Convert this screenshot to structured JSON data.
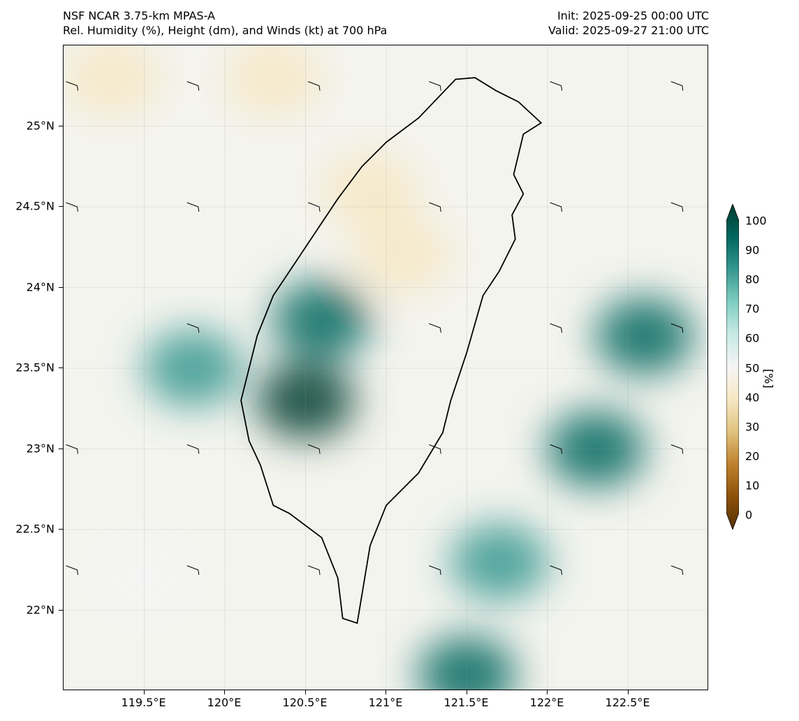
{
  "header": {
    "model": "NSF NCAR 3.75-km MPAS-A",
    "field": "Rel. Humidity (%), Height (dm), and Winds (kt) at 700 hPa",
    "init": "Init: 2025-09-25 00:00 UTC",
    "valid": "Valid: 2025-09-27 21:00 UTC"
  },
  "axes": {
    "lon_labels": [
      "119.5°E",
      "120°E",
      "120.5°E",
      "121°E",
      "121.5°E",
      "122°E",
      "122.5°E"
    ],
    "lat_labels": [
      "25°N",
      "24.5°N",
      "24°N",
      "23.5°N",
      "23°N",
      "22.5°N",
      "22°N"
    ],
    "lon_values": [
      119.5,
      120.0,
      120.5,
      121.0,
      121.5,
      122.0,
      122.5
    ],
    "lat_values": [
      25.0,
      24.5,
      24.0,
      23.5,
      23.0,
      22.5,
      22.0
    ],
    "lon_range": [
      119.0,
      123.0
    ],
    "lat_range": [
      21.5,
      25.5
    ]
  },
  "colorbar": {
    "unit_label": "[%]",
    "tick_labels": [
      "100",
      "90",
      "80",
      "70",
      "60",
      "50",
      "40",
      "30",
      "20",
      "10",
      "0"
    ],
    "colors": [
      "#543005",
      "#8c510a",
      "#bf812d",
      "#dfc27d",
      "#f6e8c3",
      "#f5f5f5",
      "#c7eae5",
      "#80cdc1",
      "#35978f",
      "#01665e",
      "#003c30"
    ]
  },
  "humidity_blobs": [
    {
      "lon": 120.3,
      "lat": 25.3,
      "rh": 35
    },
    {
      "lon": 120.9,
      "lat": 24.6,
      "rh": 38
    },
    {
      "lon": 119.3,
      "lat": 25.3,
      "rh": 40
    },
    {
      "lon": 121.1,
      "lat": 24.2,
      "rh": 42
    },
    {
      "lon": 119.5,
      "lat": 22.2,
      "rh": 45
    },
    {
      "lon": 120.5,
      "lat": 23.3,
      "rh": 95
    },
    {
      "lon": 120.6,
      "lat": 23.8,
      "rh": 92
    },
    {
      "lon": 122.3,
      "lat": 23.0,
      "rh": 90
    },
    {
      "lon": 122.6,
      "lat": 23.7,
      "rh": 88
    },
    {
      "lon": 121.7,
      "lat": 22.3,
      "rh": 80
    },
    {
      "lon": 119.8,
      "lat": 23.5,
      "rh": 75
    },
    {
      "lon": 121.5,
      "lat": 21.6,
      "rh": 85
    }
  ],
  "wind_barbs": [
    {
      "lon": 119.05,
      "lat": 25.25
    },
    {
      "lon": 119.8,
      "lat": 25.25
    },
    {
      "lon": 120.55,
      "lat": 25.25
    },
    {
      "lon": 121.3,
      "lat": 25.25
    },
    {
      "lon": 122.05,
      "lat": 25.25
    },
    {
      "lon": 122.8,
      "lat": 25.25
    },
    {
      "lon": 119.05,
      "lat": 24.5
    },
    {
      "lon": 119.8,
      "lat": 24.5
    },
    {
      "lon": 120.55,
      "lat": 24.5
    },
    {
      "lon": 121.3,
      "lat": 24.5
    },
    {
      "lon": 122.05,
      "lat": 24.5
    },
    {
      "lon": 122.8,
      "lat": 24.5
    },
    {
      "lon": 119.8,
      "lat": 23.75
    },
    {
      "lon": 121.3,
      "lat": 23.75
    },
    {
      "lon": 122.05,
      "lat": 23.75
    },
    {
      "lon": 122.8,
      "lat": 23.75
    },
    {
      "lon": 119.05,
      "lat": 23.0
    },
    {
      "lon": 119.8,
      "lat": 23.0
    },
    {
      "lon": 120.55,
      "lat": 23.0
    },
    {
      "lon": 121.3,
      "lat": 23.0
    },
    {
      "lon": 122.05,
      "lat": 23.0
    },
    {
      "lon": 122.8,
      "lat": 23.0
    },
    {
      "lon": 119.05,
      "lat": 22.25
    },
    {
      "lon": 119.8,
      "lat": 22.25
    },
    {
      "lon": 120.55,
      "lat": 22.25
    },
    {
      "lon": 121.3,
      "lat": 22.25
    },
    {
      "lon": 122.05,
      "lat": 22.25
    },
    {
      "lon": 122.8,
      "lat": 22.25
    }
  ],
  "taiwan_outline": [
    [
      121.43,
      25.29
    ],
    [
      121.55,
      25.3
    ],
    [
      121.68,
      25.22
    ],
    [
      121.82,
      25.15
    ],
    [
      121.96,
      25.02
    ],
    [
      121.85,
      24.95
    ],
    [
      121.79,
      24.7
    ],
    [
      121.85,
      24.58
    ],
    [
      121.78,
      24.45
    ],
    [
      121.8,
      24.3
    ],
    [
      121.7,
      24.1
    ],
    [
      121.6,
      23.95
    ],
    [
      121.5,
      23.6
    ],
    [
      121.4,
      23.3
    ],
    [
      121.35,
      23.1
    ],
    [
      121.2,
      22.85
    ],
    [
      121.0,
      22.65
    ],
    [
      120.9,
      22.4
    ],
    [
      120.85,
      22.1
    ],
    [
      120.82,
      21.92
    ],
    [
      120.73,
      21.95
    ],
    [
      120.7,
      22.2
    ],
    [
      120.6,
      22.45
    ],
    [
      120.4,
      22.6
    ],
    [
      120.3,
      22.65
    ],
    [
      120.22,
      22.9
    ],
    [
      120.15,
      23.05
    ],
    [
      120.1,
      23.3
    ],
    [
      120.15,
      23.5
    ],
    [
      120.2,
      23.7
    ],
    [
      120.3,
      23.95
    ],
    [
      120.5,
      24.25
    ],
    [
      120.7,
      24.55
    ],
    [
      120.85,
      24.75
    ],
    [
      121.0,
      24.9
    ],
    [
      121.2,
      25.05
    ],
    [
      121.43,
      25.29
    ]
  ]
}
